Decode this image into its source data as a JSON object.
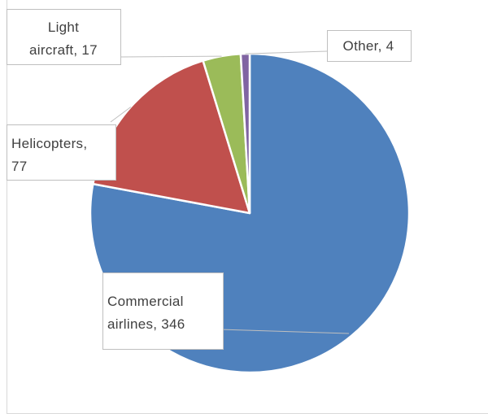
{
  "chart_data": {
    "type": "pie",
    "slices": [
      {
        "label_lines": [
          "Commercial",
          "airlines, 346"
        ],
        "category": "Commercial airlines",
        "value": 346,
        "color": "#4f81bd"
      },
      {
        "label_lines": [
          "Helicopters,",
          "77"
        ],
        "category": "Helicopters",
        "value": 77,
        "color": "#c0504d"
      },
      {
        "label_lines": [
          "Light",
          "aircraft, 17"
        ],
        "category": "Light aircraft",
        "value": 17,
        "color": "#9bbb59"
      },
      {
        "label_lines": [
          "Other,  4"
        ],
        "category": "Other",
        "value": 4,
        "color": "#8064a2"
      }
    ],
    "title": "",
    "legend": "none",
    "data_labels": "callouts"
  }
}
